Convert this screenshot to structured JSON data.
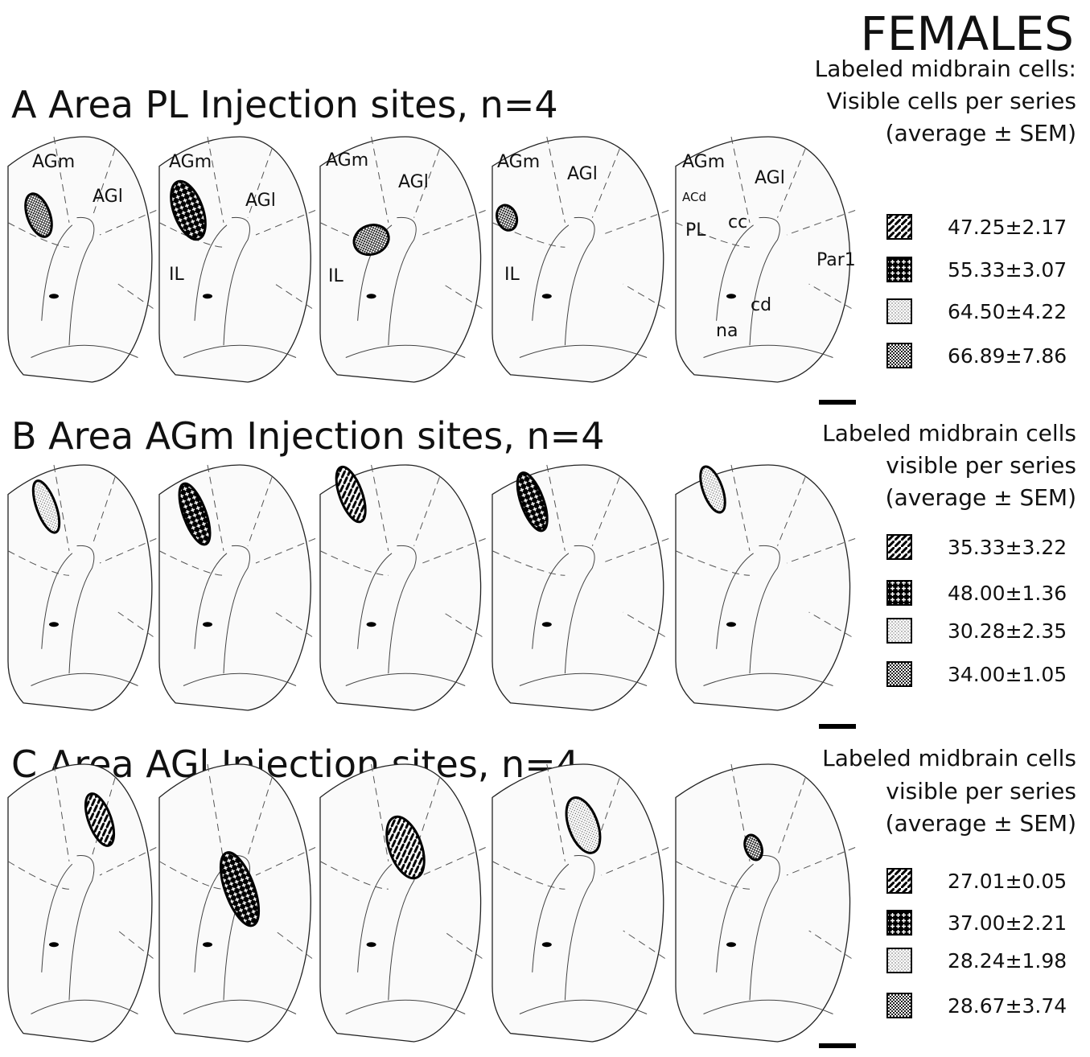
{
  "title": "FEMALES",
  "panels": [
    {
      "heading": "A  Area PL Injection sites, n=4",
      "legend_header": [
        "Labeled midbrain cells:",
        "Visible cells per series",
        "(average ± SEM)"
      ],
      "legend_values": [
        "47.25±2.17",
        "55.33±3.07",
        "64.50±4.22",
        "66.89±7.86"
      ],
      "section_labels": [
        "AGm",
        "AGl",
        "AGm",
        "AGl",
        "IL",
        "AGm",
        "AGl",
        "IL",
        "AGm",
        "AGl",
        "IL",
        "AGm",
        "AGl",
        "ACd",
        "PL",
        "cc",
        "Par1",
        "cd",
        "na"
      ]
    },
    {
      "heading": "B  Area AGm Injection sites, n=4",
      "legend_header": [
        "Labeled midbrain cells",
        "visible per series",
        "(average ± SEM)"
      ],
      "legend_values": [
        "35.33±3.22",
        "48.00±1.36",
        "30.28±2.35",
        "34.00±1.05"
      ]
    },
    {
      "heading": "C  Area AGl Injection sites, n=4",
      "legend_header": [
        "Labeled midbrain cells",
        "visible per series",
        "(average ± SEM)"
      ],
      "legend_values": [
        "27.01±0.05",
        "37.00±2.21",
        "28.24±1.98",
        "28.67±3.74"
      ]
    }
  ]
}
